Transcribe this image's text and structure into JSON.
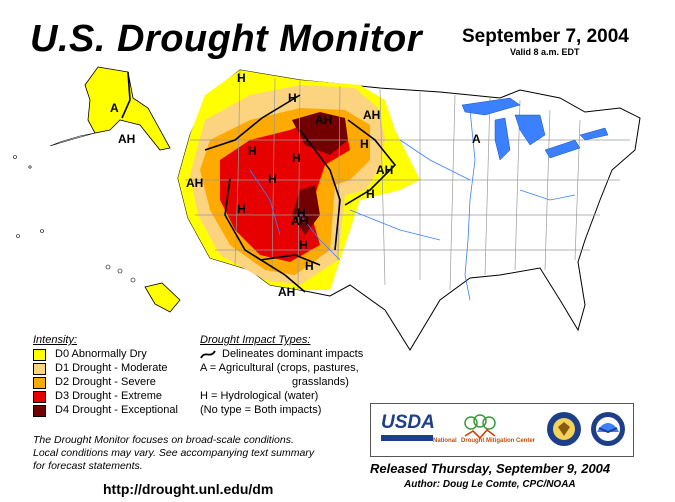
{
  "header": {
    "title": "U.S. Drought Monitor",
    "date": "September 7, 2004",
    "valid": "Valid 8 a.m. EDT"
  },
  "colors": {
    "d0": "#ffff00",
    "d1": "#fcd37f",
    "d2": "#ffaa00",
    "d3": "#e60000",
    "d4": "#730000",
    "water": "#3a80ff",
    "state_border": "#9a9a9a"
  },
  "legend": {
    "intensity_title": "Intensity:",
    "intensity": [
      {
        "label": "D0 Abnormally Dry",
        "color": "#ffff00"
      },
      {
        "label": "D1 Drought - Moderate",
        "color": "#fcd37f"
      },
      {
        "label": "D2 Drought - Severe",
        "color": "#ffaa00"
      },
      {
        "label": "D3 Drought - Extreme",
        "color": "#e60000"
      },
      {
        "label": "D4 Drought - Exceptional",
        "color": "#730000"
      }
    ],
    "impact_title": "Drought Impact Types:",
    "impact_line": "Delineates dominant impacts",
    "impact_a1": "A = Agricultural (crops, pastures,",
    "impact_a2": "grasslands)",
    "impact_h": "H = Hydrological (water)",
    "impact_none": "(No type = Both impacts)"
  },
  "map_labels": {
    "ah": "AH",
    "h": "H",
    "a": "A"
  },
  "footer": {
    "note_1": "The Drought Monitor focuses on broad-scale conditions.",
    "note_2": "Local conditions may vary.  See accompanying text summary",
    "note_3": "for forecast statements.",
    "url": "http://drought.unl.edu/dm",
    "released": "Released Thursday, September 9, 2004",
    "author": "Author: Doug Le Comte, CPC/NOAA"
  },
  "logos": {
    "usda": "USDA",
    "ndmc_national": "National",
    "ndmc_name": "Drought Mitigation Center"
  }
}
